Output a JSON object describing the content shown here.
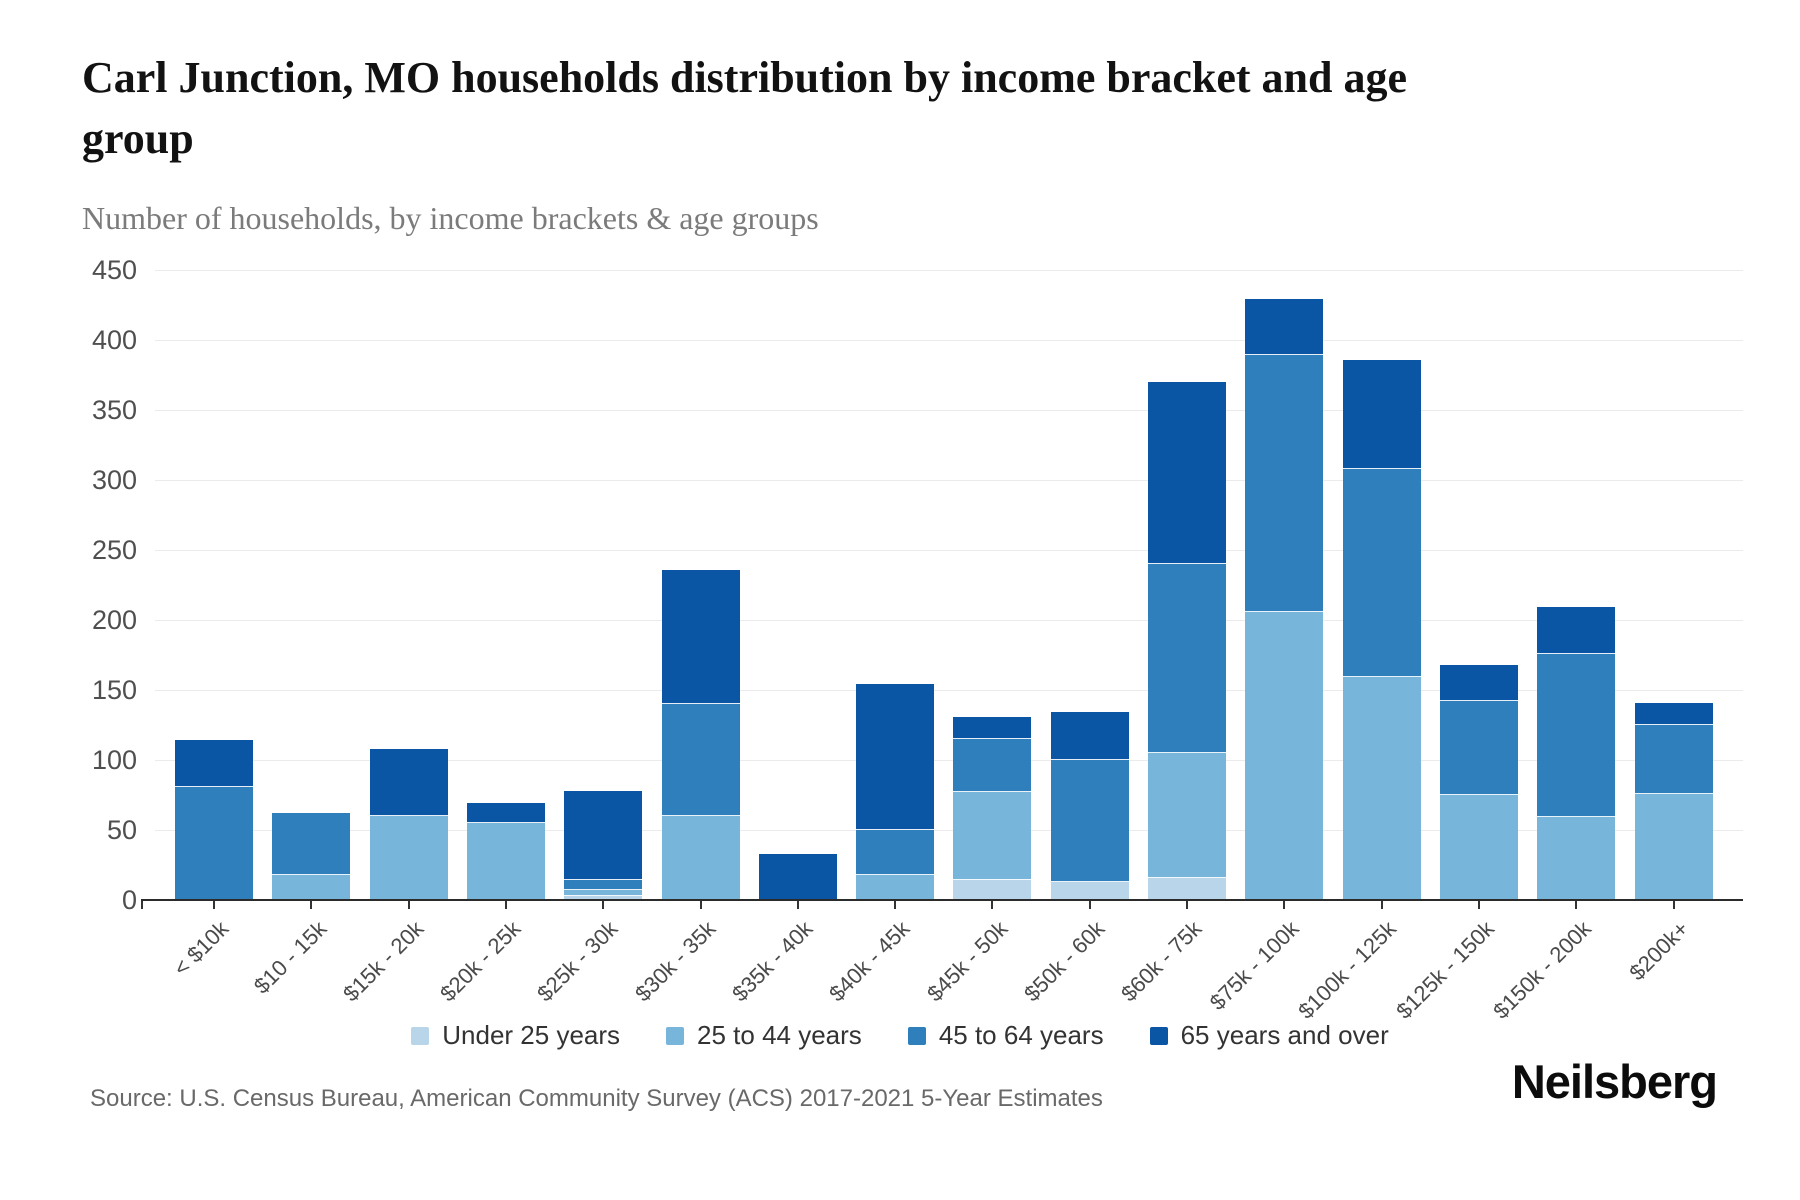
{
  "header": {
    "title": "Carl Junction, MO households distribution by income bracket and age group",
    "subtitle": "Number of households, by income brackets & age groups"
  },
  "chart_data": {
    "type": "bar",
    "stacked": true,
    "title": "Carl Junction, MO households distribution by income bracket and age group",
    "subtitle": "Number of households, by income brackets & age groups",
    "xlabel": "",
    "ylabel": "",
    "ylim": [
      0,
      450
    ],
    "ytick_step": 50,
    "grid": true,
    "legend_position": "bottom",
    "categories": [
      "< $10k",
      "$10 - 15k",
      "$15k - 20k",
      "$20k - 25k",
      "$25k - 30k",
      "$30k - 35k",
      "$35k - 40k",
      "$40k - 45k",
      "$45k - 50k",
      "$50k - 60k",
      "$60k - 75k",
      "$75k - 100k",
      "$100k - 125k",
      "$125k - 150k",
      "$150k - 200k",
      "$200k+"
    ],
    "series": [
      {
        "name": "Under 25 years",
        "color": "#b9d5ea",
        "values": [
          0,
          0,
          0,
          0,
          3,
          0,
          0,
          0,
          14,
          13,
          16,
          0,
          0,
          0,
          0,
          0
        ]
      },
      {
        "name": "25 to 44 years",
        "color": "#77b5db",
        "values": [
          0,
          18,
          60,
          55,
          4,
          60,
          0,
          18,
          63,
          0,
          89,
          206,
          159,
          75,
          59,
          76
        ]
      },
      {
        "name": "45 to 64 years",
        "color": "#2f7fbc",
        "values": [
          81,
          44,
          0,
          0,
          7,
          80,
          0,
          32,
          38,
          87,
          135,
          183,
          149,
          67,
          117,
          49
        ]
      },
      {
        "name": "65 years and over",
        "color": "#0b56a4",
        "values": [
          33,
          0,
          48,
          14,
          64,
          96,
          33,
          104,
          16,
          34,
          130,
          40,
          78,
          26,
          33,
          16
        ]
      }
    ]
  },
  "footer": {
    "source": "Source: U.S. Census Bureau, American Community Survey (ACS) 2017-2021 5-Year Estimates",
    "brand": "Neilsberg"
  }
}
